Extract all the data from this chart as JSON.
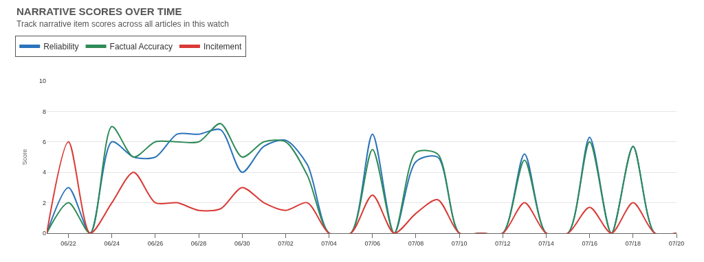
{
  "chart_data": {
    "type": "line",
    "title": "NARRATIVE SCORES OVER TIME",
    "subtitle": "Track narrative item scores across all articles in this watch",
    "ylabel": "Score",
    "x": [
      "--06-21",
      "--06-22",
      "--06-23",
      "--06-24",
      "--06-25",
      "--06-26",
      "--06-27",
      "--06-28",
      "--06-29",
      "--06-30",
      "--07-01",
      "--07-02",
      "--07-03",
      "--07-04",
      "--07-05",
      "--07-06",
      "--07-07",
      "--07-08",
      "--07-09",
      "--07-10",
      "--07-11",
      "--07-12",
      "--07-13",
      "--07-14",
      "--07-15",
      "--07-16",
      "--07-17",
      "--07-18",
      "--07-19",
      "--07-20"
    ],
    "series": [
      {
        "name": "Reliability",
        "color": "#2b73b9",
        "values": [
          0,
          3,
          0,
          6,
          5,
          5,
          6.5,
          6.5,
          6.8,
          4,
          5.7,
          6.1,
          4.5,
          0,
          0,
          6.5,
          0,
          4.7,
          5,
          0,
          0,
          0,
          5.2,
          0,
          0,
          6.3,
          0,
          5.7,
          0,
          0
        ]
      },
      {
        "name": "Factual Accuracy",
        "color": "#2e8b57",
        "values": [
          0,
          2,
          0,
          7,
          5,
          6,
          6,
          6,
          7.2,
          5,
          6,
          6,
          3.8,
          0,
          0,
          5.5,
          0,
          5.3,
          5.2,
          0,
          0,
          0,
          4.8,
          0,
          0,
          6,
          0,
          5.7,
          0,
          0
        ]
      },
      {
        "name": "Incitement",
        "color": "#d93a35",
        "values": [
          0,
          6,
          0,
          2,
          4,
          2,
          2,
          1.5,
          1.6,
          3,
          2,
          1.5,
          2,
          0,
          0,
          2.5,
          0,
          1.3,
          2.2,
          0,
          0,
          0,
          2,
          0,
          0,
          1.7,
          0,
          2,
          0,
          0
        ]
      }
    ],
    "xlim": [
      "--06-21",
      "--07-20"
    ],
    "xticks": [
      {
        "value": "--06-22",
        "label": "06/22"
      },
      {
        "value": "--06-24",
        "label": "06/24"
      },
      {
        "value": "--06-26",
        "label": "06/26"
      },
      {
        "value": "--06-28",
        "label": "06/28"
      },
      {
        "value": "--06-30",
        "label": "06/30"
      },
      {
        "value": "--07-02",
        "label": "07/02"
      },
      {
        "value": "--07-04",
        "label": "07/04"
      },
      {
        "value": "--07-06",
        "label": "07/06"
      },
      {
        "value": "--07-08",
        "label": "07/08"
      },
      {
        "value": "--07-10",
        "label": "07/10"
      },
      {
        "value": "--07-12",
        "label": "07/12"
      },
      {
        "value": "--07-14",
        "label": "07/14"
      },
      {
        "value": "--07-16",
        "label": "07/16"
      },
      {
        "value": "--07-18",
        "label": "07/18"
      },
      {
        "value": "--07-20",
        "label": "07/20"
      }
    ],
    "ylim": [
      0,
      10
    ],
    "yticks": [
      0,
      2,
      4,
      6,
      8,
      10
    ],
    "grid": "y",
    "legend": "top left",
    "marker": "none",
    "line_style": "solid"
  }
}
